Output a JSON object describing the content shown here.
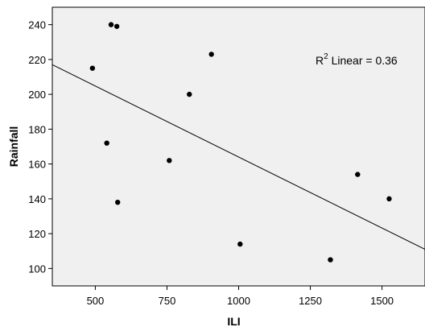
{
  "chart_data": {
    "type": "scatter",
    "xlabel": "ILI",
    "ylabel": "Rainfall",
    "xlim": [
      350,
      1650
    ],
    "ylim": [
      90,
      250
    ],
    "xticks": [
      500,
      750,
      1000,
      1250,
      1500
    ],
    "yticks": [
      100,
      120,
      140,
      160,
      180,
      200,
      220,
      240
    ],
    "points": [
      {
        "x": 555,
        "y": 240
      },
      {
        "x": 575,
        "y": 239
      },
      {
        "x": 490,
        "y": 215
      },
      {
        "x": 905,
        "y": 223
      },
      {
        "x": 828,
        "y": 200
      },
      {
        "x": 540,
        "y": 172
      },
      {
        "x": 758,
        "y": 162
      },
      {
        "x": 578,
        "y": 138
      },
      {
        "x": 1005,
        "y": 114
      },
      {
        "x": 1320,
        "y": 105
      },
      {
        "x": 1415,
        "y": 154
      },
      {
        "x": 1525,
        "y": 140
      }
    ],
    "fit_line": {
      "x": [
        350,
        1650
      ],
      "y": [
        217,
        111
      ]
    },
    "annotation": {
      "r2_prefix": "R",
      "r2_superscript": "2",
      "r2_text": " Linear = 0.36"
    },
    "background_color": "#f0f0f0",
    "point_color": "#000000",
    "line_color": "#000000"
  }
}
